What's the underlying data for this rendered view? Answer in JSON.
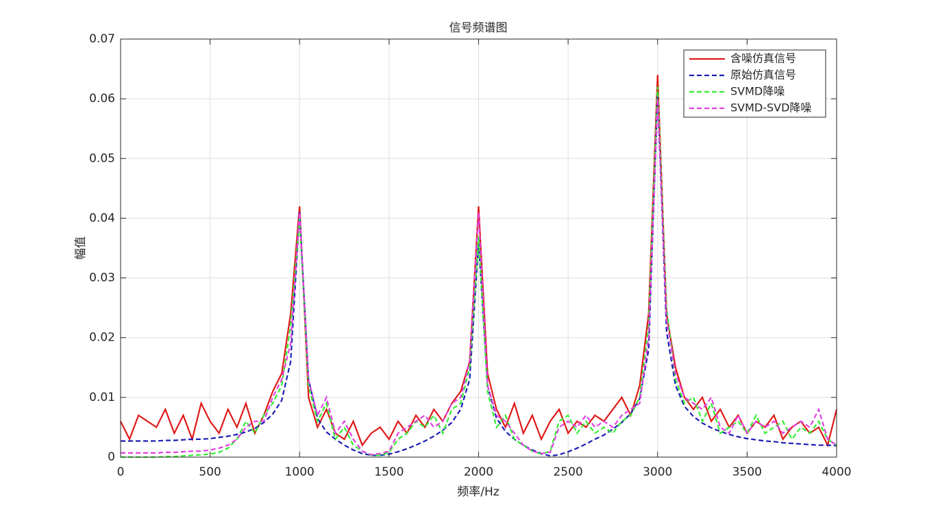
{
  "chart_data": {
    "type": "line",
    "title": "信号频谱图",
    "xlabel": "频率/Hz",
    "ylabel": "幅值",
    "x": [
      0,
      50,
      100,
      150,
      200,
      250,
      300,
      350,
      400,
      450,
      500,
      550,
      600,
      650,
      700,
      750,
      800,
      850,
      900,
      950,
      1000,
      1050,
      1100,
      1150,
      1200,
      1250,
      1300,
      1350,
      1400,
      1450,
      1500,
      1550,
      1600,
      1650,
      1700,
      1750,
      1800,
      1850,
      1900,
      1950,
      2000,
      2050,
      2100,
      2150,
      2200,
      2250,
      2300,
      2350,
      2400,
      2450,
      2500,
      2550,
      2600,
      2650,
      2700,
      2750,
      2800,
      2850,
      2900,
      2950,
      3000,
      3050,
      3100,
      3150,
      3200,
      3250,
      3300,
      3350,
      3400,
      3450,
      3500,
      3550,
      3600,
      3650,
      3700,
      3750,
      3800,
      3850,
      3900,
      3950,
      4000
    ],
    "series": [
      {
        "name": "含噪仿真信号",
        "color": "#e01818",
        "line_style": "solid",
        "values": [
          0.006,
          0.003,
          0.007,
          0.006,
          0.005,
          0.008,
          0.004,
          0.007,
          0.003,
          0.009,
          0.006,
          0.004,
          0.008,
          0.005,
          0.009,
          0.004,
          0.007,
          0.011,
          0.014,
          0.024,
          0.042,
          0.01,
          0.005,
          0.008,
          0.004,
          0.003,
          0.006,
          0.002,
          0.004,
          0.005,
          0.003,
          0.006,
          0.004,
          0.007,
          0.005,
          0.008,
          0.006,
          0.009,
          0.011,
          0.016,
          0.042,
          0.014,
          0.008,
          0.005,
          0.009,
          0.004,
          0.007,
          0.003,
          0.006,
          0.008,
          0.004,
          0.006,
          0.005,
          0.007,
          0.006,
          0.008,
          0.01,
          0.007,
          0.012,
          0.024,
          0.064,
          0.024,
          0.015,
          0.01,
          0.008,
          0.01,
          0.006,
          0.008,
          0.005,
          0.007,
          0.004,
          0.006,
          0.005,
          0.007,
          0.003,
          0.005,
          0.006,
          0.004,
          0.005,
          0.002,
          0.008
        ]
      },
      {
        "name": "原始仿真信号",
        "color": "#1c1cb4",
        "line_style": "dashed",
        "values": [
          0.0027,
          0.0027,
          0.0027,
          0.0027,
          0.0027,
          0.0028,
          0.0028,
          0.0029,
          0.003,
          0.003,
          0.0031,
          0.0033,
          0.0035,
          0.0038,
          0.0042,
          0.0048,
          0.0058,
          0.0072,
          0.0095,
          0.016,
          0.041,
          0.013,
          0.0065,
          0.0042,
          0.003,
          0.002,
          0.0012,
          0.0006,
          0.0003,
          0.0003,
          0.0005,
          0.0009,
          0.0014,
          0.002,
          0.0027,
          0.0035,
          0.0045,
          0.0058,
          0.008,
          0.013,
          0.036,
          0.012,
          0.0065,
          0.0043,
          0.003,
          0.002,
          0.0012,
          0.0006,
          0.0002,
          0.0004,
          0.0009,
          0.0015,
          0.0022,
          0.003,
          0.0037,
          0.0047,
          0.0058,
          0.0073,
          0.0098,
          0.018,
          0.061,
          0.021,
          0.012,
          0.0085,
          0.0068,
          0.0057,
          0.0049,
          0.0043,
          0.0038,
          0.0034,
          0.0031,
          0.0029,
          0.0027,
          0.0026,
          0.0024,
          0.0023,
          0.0022,
          0.0021,
          0.002,
          0.002,
          0.0019
        ]
      },
      {
        "name": "SVMD降噪",
        "color": "#33ee33",
        "line_style": "dashed",
        "values": [
          0,
          0,
          0,
          0,
          0,
          0.0001,
          0.0001,
          0.0002,
          0.0003,
          0.0004,
          0.0005,
          0.0008,
          0.0015,
          0.003,
          0.006,
          0.004,
          0.007,
          0.009,
          0.012,
          0.022,
          0.04,
          0.012,
          0.006,
          0.009,
          0.003,
          0.005,
          0.002,
          0.001,
          0.0003,
          0.0003,
          0.0008,
          0.003,
          0.004,
          0.006,
          0.005,
          0.007,
          0.004,
          0.008,
          0.009,
          0.015,
          0.037,
          0.011,
          0.005,
          0.007,
          0.003,
          0.002,
          0.001,
          0.0005,
          0.001,
          0.006,
          0.007,
          0.004,
          0.006,
          0.004,
          0.005,
          0.004,
          0.006,
          0.007,
          0.01,
          0.022,
          0.062,
          0.025,
          0.013,
          0.009,
          0.01,
          0.006,
          0.009,
          0.004,
          0.005,
          0.006,
          0.004,
          0.007,
          0.004,
          0.005,
          0.006,
          0.003,
          0.005,
          0.004,
          0.006,
          0.003,
          0.002
        ]
      },
      {
        "name": "SVMD-SVD降噪",
        "color": "#e040e0",
        "line_style": "dashed",
        "values": [
          0.0007,
          0.0007,
          0.0007,
          0.0007,
          0.0007,
          0.0008,
          0.0008,
          0.0009,
          0.001,
          0.001,
          0.0012,
          0.0015,
          0.002,
          0.003,
          0.005,
          0.006,
          0.006,
          0.01,
          0.013,
          0.019,
          0.041,
          0.013,
          0.007,
          0.01,
          0.004,
          0.006,
          0.003,
          0.001,
          0.0004,
          0.0006,
          0.001,
          0.004,
          0.005,
          0.006,
          0.007,
          0.005,
          0.006,
          0.009,
          0.01,
          0.016,
          0.041,
          0.012,
          0.007,
          0.006,
          0.004,
          0.002,
          0.001,
          0.0006,
          0.0008,
          0.005,
          0.006,
          0.005,
          0.007,
          0.005,
          0.006,
          0.005,
          0.007,
          0.008,
          0.009,
          0.02,
          0.06,
          0.023,
          0.014,
          0.01,
          0.009,
          0.008,
          0.01,
          0.005,
          0.004,
          0.007,
          0.004,
          0.006,
          0.005,
          0.006,
          0.004,
          0.005,
          0.006,
          0.005,
          0.008,
          0.003,
          0.002
        ]
      }
    ],
    "xlim": [
      0,
      4000
    ],
    "xticks": [
      0,
      500,
      1000,
      1500,
      2000,
      2500,
      3000,
      3500,
      4000
    ],
    "ylim": [
      0,
      0.07
    ],
    "yticks": [
      0,
      0.01,
      0.02,
      0.03,
      0.04,
      0.05,
      0.06,
      0.07
    ],
    "grid": true,
    "legend": "upper right"
  }
}
